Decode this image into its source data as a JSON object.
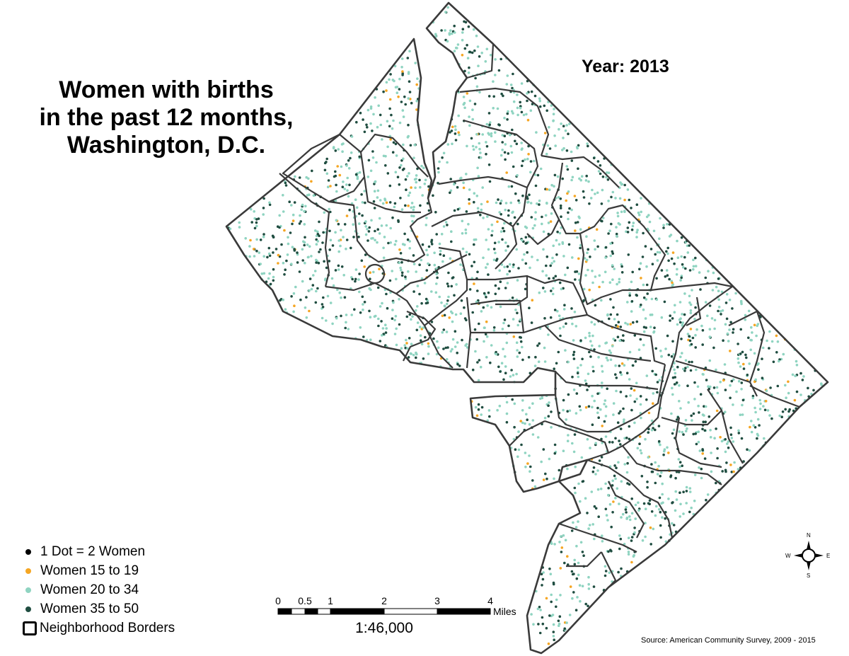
{
  "title_lines": [
    "Women with births",
    "in the past 12 months,",
    "Washington, D.C."
  ],
  "year_label": "Year: 2013",
  "legend": {
    "dot_unit": "1 Dot = 2 Women",
    "groups": [
      {
        "label": "Women 15 to 19",
        "color": "#f5a623",
        "share": 0.05
      },
      {
        "label": "Women 20 to 34",
        "color": "#8fd4c1",
        "share": 0.55
      },
      {
        "label": "Women 35 to 50",
        "color": "#1f4d40",
        "share": 0.4
      }
    ],
    "borders_label": "Neighborhood Borders"
  },
  "scale_bar": {
    "ticks": [
      "0",
      "0.5",
      "1",
      "2",
      "3",
      "4"
    ],
    "unit": "Miles",
    "ratio": "1:46,000"
  },
  "compass": {
    "n": "N",
    "s": "S",
    "e": "E",
    "w": "W"
  },
  "source": "Source: American Community Survey, 2009 - 2015",
  "colors": {
    "border": "#333333",
    "teen": "#f5a623",
    "young": "#8fd4c1",
    "older": "#1f4d40"
  }
}
